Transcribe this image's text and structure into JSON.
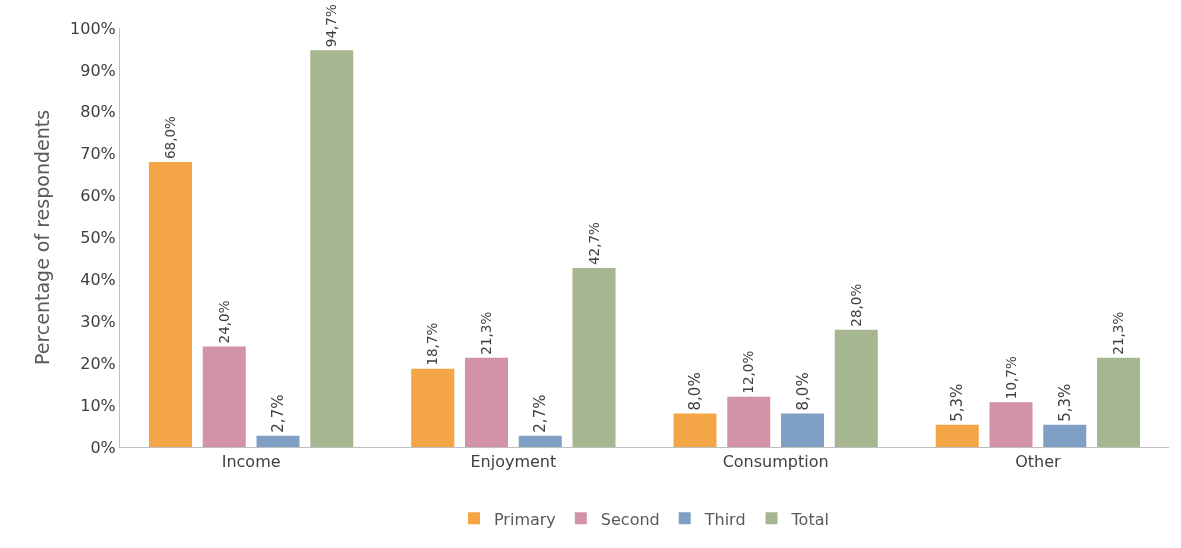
{
  "chart_data": {
    "type": "bar",
    "ylabel": "Percentage of respondents",
    "categories": [
      "Income",
      "Enjoyment",
      "Consumption",
      "Other"
    ],
    "series": [
      {
        "name": "Primary",
        "color": "#f4a546",
        "values": [
          68.0,
          18.7,
          8.0,
          5.3
        ],
        "value_labels": [
          "68,0%",
          "18,7%",
          "8,0%",
          "5,3%"
        ]
      },
      {
        "name": "Second",
        "color": "#d293a7",
        "values": [
          24.0,
          21.3,
          12.0,
          10.7
        ],
        "value_labels": [
          "24,0%",
          "21,3%",
          "12,0%",
          "10,7%"
        ]
      },
      {
        "name": "Third",
        "color": "#7f9fc5",
        "values": [
          2.7,
          2.7,
          8.0,
          5.3
        ],
        "value_labels": [
          "2,7%",
          "2,7%",
          "8,0%",
          "5,3%"
        ]
      },
      {
        "name": "Total",
        "color": "#a6b690",
        "values": [
          94.7,
          42.7,
          28.0,
          21.3
        ],
        "value_labels": [
          "94,7%",
          "42,7%",
          "28,0%",
          "21,3%"
        ]
      }
    ],
    "ylim": [
      0,
      100
    ],
    "yticks": [
      {
        "value": 0,
        "label": "0%"
      },
      {
        "value": 10,
        "label": "10%"
      },
      {
        "value": 20,
        "label": "20%"
      },
      {
        "value": 30,
        "label": "30%"
      },
      {
        "value": 40,
        "label": "40%"
      },
      {
        "value": 50,
        "label": "50%"
      },
      {
        "value": 60,
        "label": "60%"
      },
      {
        "value": 70,
        "label": "70%"
      },
      {
        "value": 80,
        "label": "80%"
      },
      {
        "value": 90,
        "label": "90%"
      },
      {
        "value": 100,
        "label": "100%"
      }
    ],
    "grid": false,
    "legend": "bottom"
  }
}
